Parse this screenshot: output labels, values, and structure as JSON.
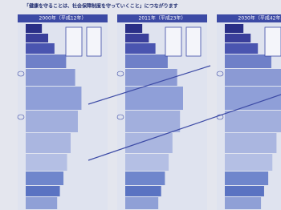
{
  "header": {
    "title": "「健康を守ることは、社会保障制度を守っていくこと」につながります"
  },
  "panels": [
    {
      "label": "2000年（平成12年）"
    },
    {
      "label": "2011年（平成23年）"
    },
    {
      "label": "2030年（平成42年）"
    }
  ]
}
